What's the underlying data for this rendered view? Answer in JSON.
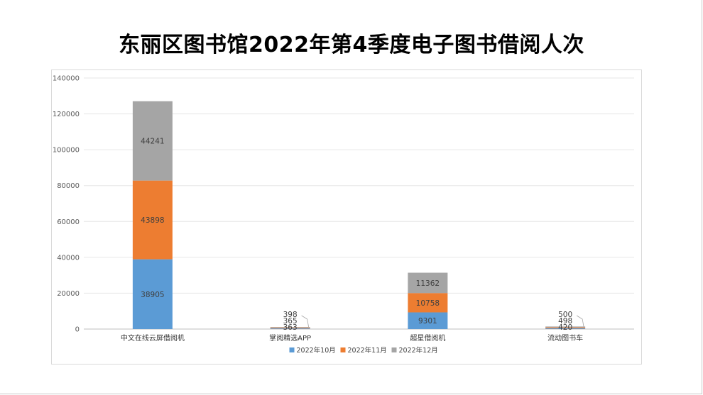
{
  "title": "东丽区图书馆2022年第4季度电子图书借阅人次",
  "colors": {
    "oct": "#5b9bd5",
    "nov": "#ed7d31",
    "dec": "#a5a5a5",
    "grid": "#e6e6e6"
  },
  "chart_data": {
    "type": "bar",
    "stacked": true,
    "title": "东丽区图书馆2022年第4季度电子图书借阅人次",
    "categories": [
      "中文在线云屏借阅机",
      "掌阅精选APP",
      "超星借阅机",
      "流动图书车"
    ],
    "series": [
      {
        "name": "2022年10月",
        "values": [
          38905,
          363,
          9301,
          420
        ]
      },
      {
        "name": "2022年11月",
        "values": [
          43898,
          365,
          10758,
          498
        ]
      },
      {
        "name": "2022年12月",
        "values": [
          44241,
          398,
          11362,
          500
        ]
      }
    ],
    "ylim": [
      0,
      140000
    ],
    "yticks": [
      0,
      20000,
      40000,
      60000,
      80000,
      100000,
      120000,
      140000
    ],
    "legend": "bottom",
    "grid": true
  }
}
